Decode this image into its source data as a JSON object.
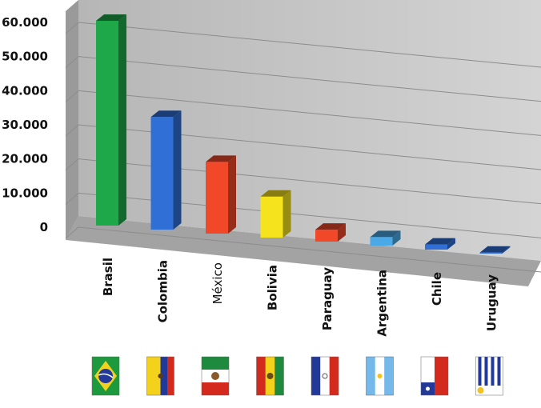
{
  "chart_data": {
    "type": "bar",
    "title": "",
    "xlabel": "",
    "ylabel": "",
    "ylim": [
      0,
      60000
    ],
    "yticks": [
      "60.000",
      "50.000",
      "40.000",
      "30.000",
      "20.000",
      "10.000",
      "0"
    ],
    "grid": true,
    "categories": [
      "Brasil",
      "Colombia",
      "México",
      "Bolivia",
      "Paraguay",
      "Argentina",
      "Chile",
      "Uruguay"
    ],
    "values": [
      60000,
      33000,
      21000,
      12000,
      3500,
      2500,
      1500,
      300
    ],
    "colors": [
      "#1fa84a",
      "#2f6fd6",
      "#f2482a",
      "#f5e31e",
      "#f2482a",
      "#4aa9e6",
      "#2f6fd6",
      "#2f6fd6"
    ],
    "bold_labels": [
      true,
      true,
      false,
      true,
      true,
      true,
      true,
      true
    ],
    "flags": [
      "brazil-flag-icon",
      "colombia-flag-icon",
      "mexico-flag-icon",
      "bolivia-flag-icon",
      "paraguay-flag-icon",
      "argentina-flag-icon",
      "chile-flag-icon",
      "uruguay-flag-icon"
    ]
  }
}
